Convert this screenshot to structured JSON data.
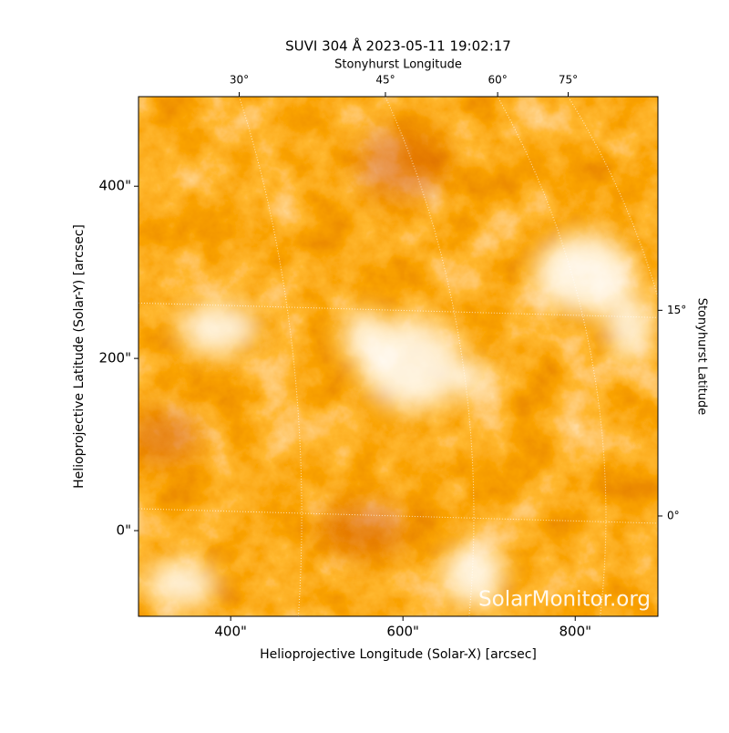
{
  "chart_data": {
    "type": "image",
    "title": "SUVI 304 Å 2023-05-11 19:02:17",
    "xlabel": "Helioprojective Longitude (Solar-X) [arcsec]",
    "ylabel": "Helioprojective Latitude (Solar-Y) [arcsec]",
    "x2label": "Stonyhurst Longitude",
    "y2label": "Stonyhurst Latitude",
    "watermark": "SolarMonitor.org",
    "xlim": [
      293,
      896
    ],
    "ylim": [
      -99.5,
      504
    ],
    "xticks": [
      {
        "value": 400,
        "label": "400\""
      },
      {
        "value": 600,
        "label": "600\""
      },
      {
        "value": 800,
        "label": "800\""
      }
    ],
    "yticks": [
      {
        "value": 0,
        "label": "0\""
      },
      {
        "value": 200,
        "label": "200\""
      },
      {
        "value": 400,
        "label": "400\""
      }
    ],
    "x2ticks": [
      {
        "value": 30,
        "label": "30°"
      },
      {
        "value": 45,
        "label": "45°"
      },
      {
        "value": 60,
        "label": "60°"
      },
      {
        "value": 75,
        "label": "75°"
      }
    ],
    "y2ticks": [
      {
        "value": 0,
        "label": "0°"
      },
      {
        "value": 15,
        "label": "15°"
      }
    ],
    "grid": true
  }
}
